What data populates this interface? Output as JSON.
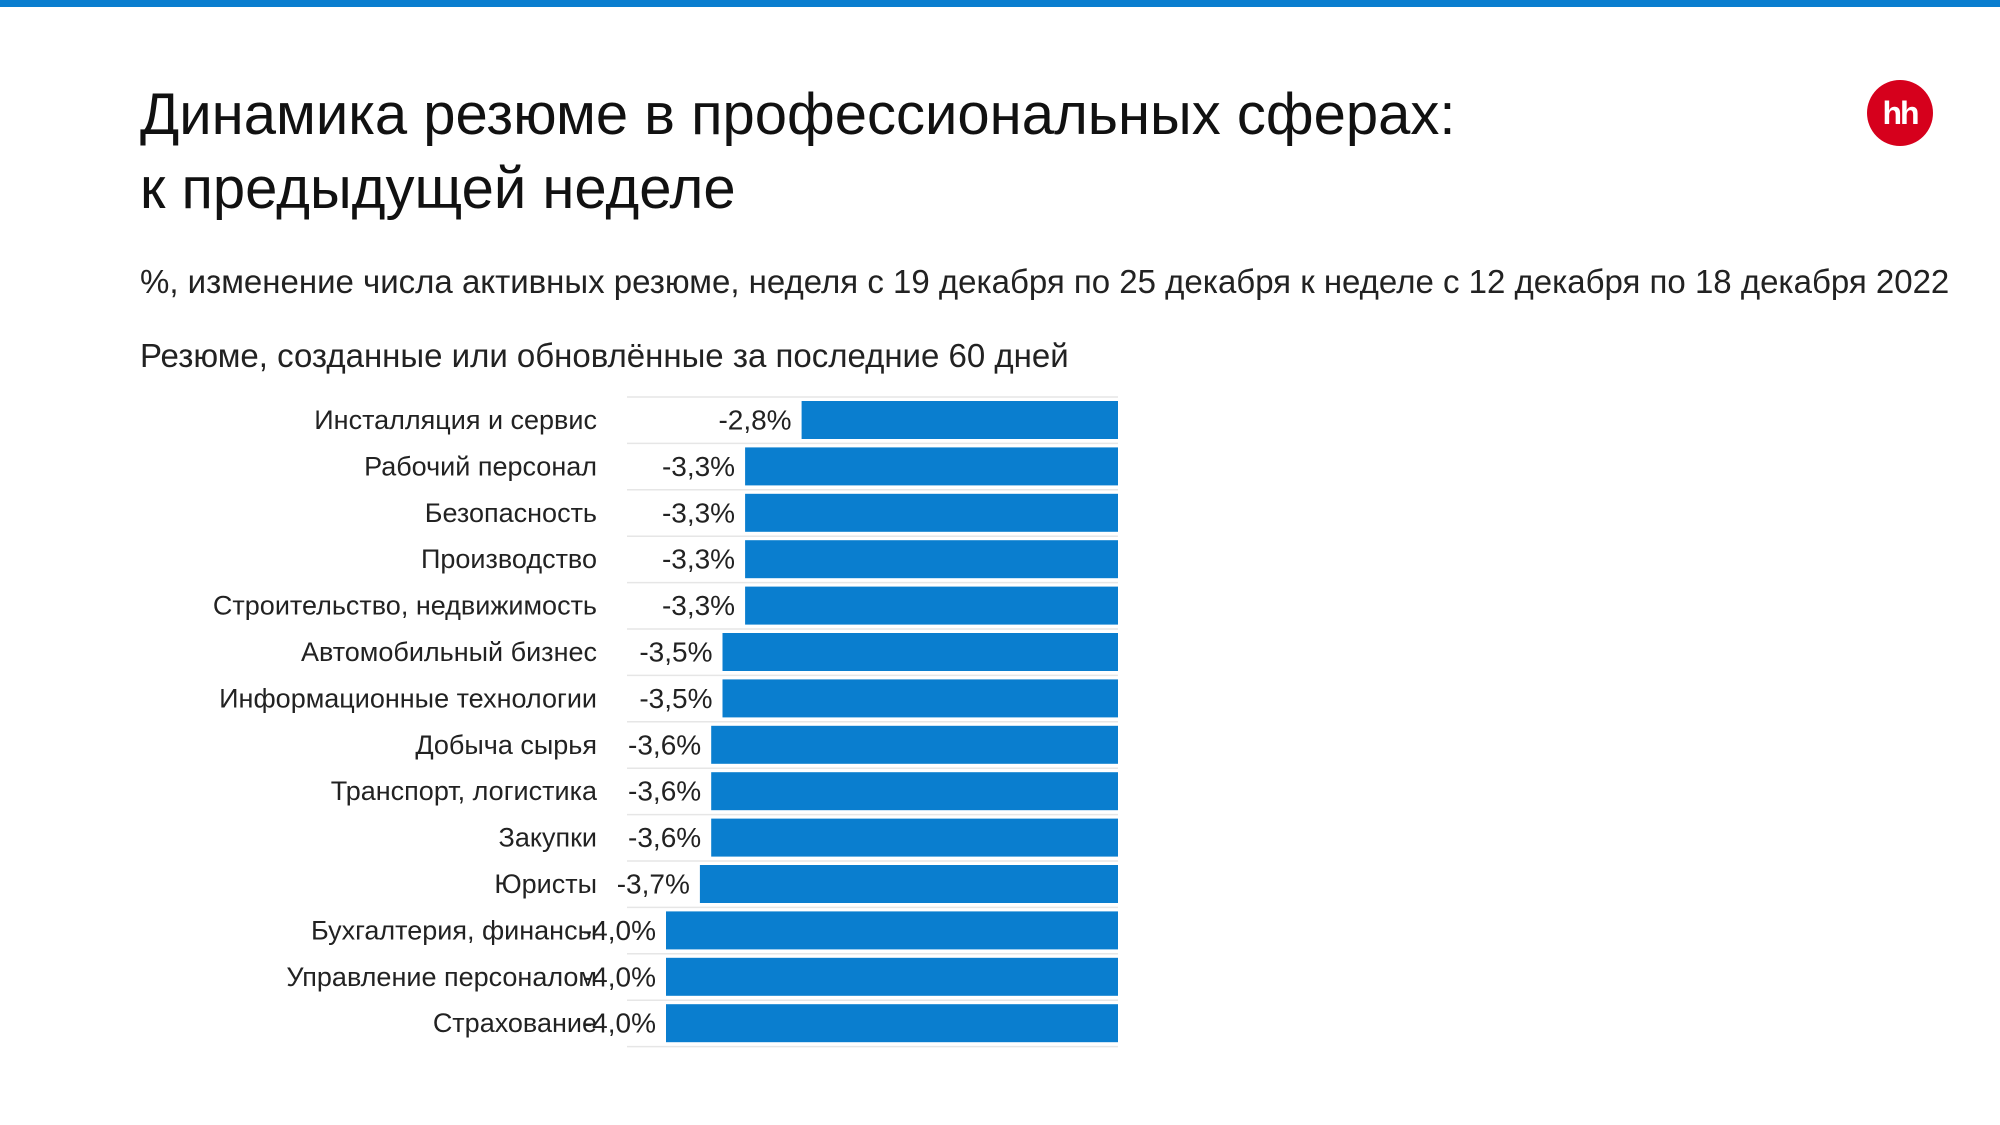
{
  "title_lines": [
    "Динамика резюме в профессиональных сферах:",
    "к предыдущей неделе"
  ],
  "subtitle": "%, изменение числа активных резюме, неделя с 19 декабря по 25 декабря к неделе с 12 декабря по 18 декабря 2022",
  "note": "Резюме, созданные или обновлённые за последние 60 дней",
  "logo": {
    "text": "hh",
    "color": "#d6001c"
  },
  "colors": {
    "accent": "#0a7ecf",
    "bar": "#0a7ecf",
    "top_bar": "#0a7ecf",
    "separator": "#e6e6e6"
  },
  "chart_data": {
    "type": "bar",
    "orientation": "horizontal",
    "categories": [
      "Инсталляция и сервис",
      "Рабочий персонал",
      "Безопасность",
      "Производство",
      "Строительство, недвижимость",
      "Автомобильный бизнес",
      "Информационные технологии",
      "Добыча сырья",
      "Транспорт, логистика",
      "Закупки",
      "Юристы",
      "Бухгалтерия, финансы",
      "Управление персоналом",
      "Страхование"
    ],
    "values": [
      -2.8,
      -3.3,
      -3.3,
      -3.3,
      -3.3,
      -3.5,
      -3.5,
      -3.6,
      -3.6,
      -3.6,
      -3.7,
      -4.0,
      -4.0,
      -4.0
    ],
    "value_labels": [
      "-2,8%",
      "-3,3%",
      "-3,3%",
      "-3,3%",
      "-3,3%",
      "-3,5%",
      "-3,5%",
      "-3,6%",
      "-3,6%",
      "-3,6%",
      "-3,7%",
      "-4,0%",
      "-4,0%",
      "-4,0%"
    ],
    "title": "",
    "xlabel": "",
    "ylabel": "",
    "xlim": [
      -5.0,
      0
    ],
    "grid": false,
    "legend": "none"
  }
}
